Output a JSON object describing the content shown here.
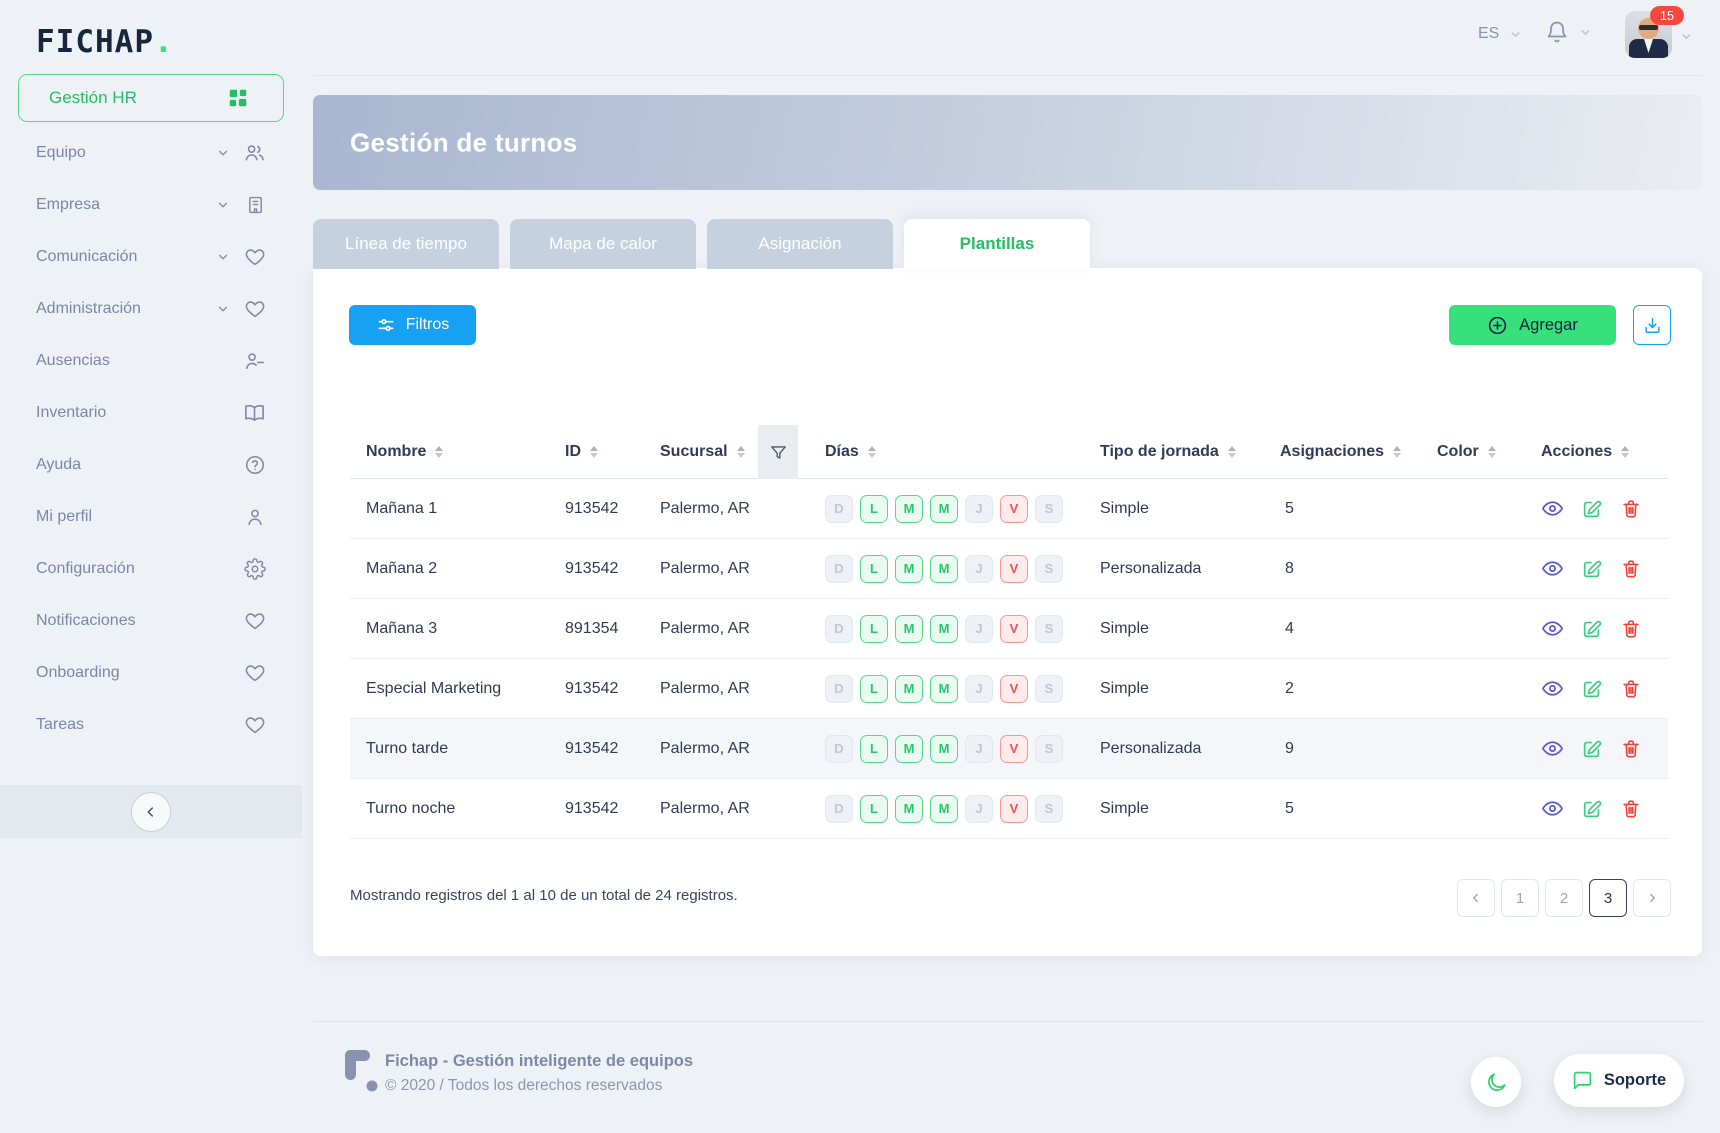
{
  "brand": {
    "logo_text": "FICHAP",
    "logo_dot": "."
  },
  "colors": {
    "accent_green": "#2ee56e",
    "primary_blue": "#17a1f2",
    "danger_red": "#f0453a",
    "banner_from": "#a8b7d0",
    "banner_to": "#eaedf2"
  },
  "topbar": {
    "language": "ES",
    "notification_count": "15"
  },
  "sidebar": {
    "primary": {
      "label": "Gestión HR",
      "icon": "dashboard-grid-icon"
    },
    "items": [
      {
        "label": "Equipo",
        "icon": "users-icon",
        "expandable": true
      },
      {
        "label": "Empresa",
        "icon": "building-icon",
        "expandable": true
      },
      {
        "label": "Comunicación",
        "icon": "heart-icon",
        "expandable": true
      },
      {
        "label": "Administración",
        "icon": "heart-icon",
        "expandable": true
      },
      {
        "label": "Ausencias",
        "icon": "user-minus-icon",
        "expandable": false
      },
      {
        "label": "Inventario",
        "icon": "book-icon",
        "expandable": false
      },
      {
        "label": "Ayuda",
        "icon": "help-circle-icon",
        "expandable": false
      },
      {
        "label": "Mi perfil",
        "icon": "user-icon",
        "expandable": false
      },
      {
        "label": "Configuración",
        "icon": "gear-icon",
        "expandable": false
      },
      {
        "label": "Notificaciones",
        "icon": "heart-icon",
        "expandable": false
      },
      {
        "label": "Onboarding",
        "icon": "heart-icon",
        "expandable": false
      },
      {
        "label": "Tareas",
        "icon": "heart-icon",
        "expandable": false
      }
    ]
  },
  "page": {
    "title": "Gestión de turnos"
  },
  "tabs": [
    {
      "label": "Línea de tiempo",
      "active": false
    },
    {
      "label": "Mapa de calor",
      "active": false
    },
    {
      "label": "Asignación",
      "active": false
    },
    {
      "label": "Plantillas",
      "active": true
    }
  ],
  "toolbar": {
    "filters_label": "Filtros",
    "add_label": "Agregar"
  },
  "table": {
    "headers": {
      "nombre": "Nombre",
      "id": "ID",
      "sucursal": "Sucursal",
      "dias": "Días",
      "tipo": "Tipo de jornada",
      "asignaciones": "Asignaciones",
      "color": "Color",
      "acciones": "Acciones"
    },
    "rows": [
      {
        "name": "Mañana 1",
        "id": "913542",
        "branch": "Palermo, AR",
        "days": [
          {
            "label": "D",
            "state": "off"
          },
          {
            "label": "L",
            "state": "on"
          },
          {
            "label": "M",
            "state": "on"
          },
          {
            "label": "M",
            "state": "on"
          },
          {
            "label": "J",
            "state": "off"
          },
          {
            "label": "V",
            "state": "alert"
          },
          {
            "label": "S",
            "state": "off"
          }
        ],
        "shift_type": "Simple",
        "assignments": "5",
        "color": "#0a9cf5",
        "highlighted": false
      },
      {
        "name": "Mañana 2",
        "id": "913542",
        "branch": "Palermo, AR",
        "days": [
          {
            "label": "D",
            "state": "off"
          },
          {
            "label": "L",
            "state": "on"
          },
          {
            "label": "M",
            "state": "on"
          },
          {
            "label": "M",
            "state": "on"
          },
          {
            "label": "J",
            "state": "off"
          },
          {
            "label": "V",
            "state": "alert"
          },
          {
            "label": "S",
            "state": "off"
          }
        ],
        "shift_type": "Personalizada",
        "assignments": "8",
        "color": "#ffd103",
        "highlighted": false
      },
      {
        "name": "Mañana 3",
        "id": "891354",
        "branch": "Palermo, AR",
        "days": [
          {
            "label": "D",
            "state": "off"
          },
          {
            "label": "L",
            "state": "on"
          },
          {
            "label": "M",
            "state": "on"
          },
          {
            "label": "M",
            "state": "on"
          },
          {
            "label": "J",
            "state": "off"
          },
          {
            "label": "V",
            "state": "alert"
          },
          {
            "label": "S",
            "state": "off"
          }
        ],
        "shift_type": "Simple",
        "assignments": "4",
        "color": "#f6382c",
        "highlighted": false
      },
      {
        "name": "Especial Marketing",
        "id": "913542",
        "branch": "Palermo, AR",
        "days": [
          {
            "label": "D",
            "state": "off"
          },
          {
            "label": "L",
            "state": "on"
          },
          {
            "label": "M",
            "state": "on"
          },
          {
            "label": "M",
            "state": "on"
          },
          {
            "label": "J",
            "state": "off"
          },
          {
            "label": "V",
            "state": "alert"
          },
          {
            "label": "S",
            "state": "off"
          }
        ],
        "shift_type": "Simple",
        "assignments": "2",
        "color": "#6355d4",
        "highlighted": false
      },
      {
        "name": "Turno tarde",
        "id": "913542",
        "branch": "Palermo, AR",
        "days": [
          {
            "label": "D",
            "state": "off"
          },
          {
            "label": "L",
            "state": "on"
          },
          {
            "label": "M",
            "state": "on"
          },
          {
            "label": "M",
            "state": "on"
          },
          {
            "label": "J",
            "state": "off"
          },
          {
            "label": "V",
            "state": "alert"
          },
          {
            "label": "S",
            "state": "off"
          }
        ],
        "shift_type": "Personalizada",
        "assignments": "9",
        "color": "#38df7d",
        "highlighted": true
      },
      {
        "name": "Turno noche",
        "id": "913542",
        "branch": "Palermo, AR",
        "days": [
          {
            "label": "D",
            "state": "off"
          },
          {
            "label": "L",
            "state": "on"
          },
          {
            "label": "M",
            "state": "on"
          },
          {
            "label": "M",
            "state": "on"
          },
          {
            "label": "J",
            "state": "off"
          },
          {
            "label": "V",
            "state": "alert"
          },
          {
            "label": "S",
            "state": "off"
          }
        ],
        "shift_type": "Simple",
        "assignments": "5",
        "color": "#8b91a6",
        "highlighted": false
      }
    ]
  },
  "pagination": {
    "summary": "Mostrando registros del 1 al 10 de un total de 24 registros.",
    "pages": [
      "1",
      "2",
      "3"
    ],
    "active_page": "3"
  },
  "footer": {
    "title": "Fichap - Gestión inteligente de equipos",
    "copyright": "© 2020 / Todos los derechos reservados",
    "support_label": "Soporte"
  }
}
